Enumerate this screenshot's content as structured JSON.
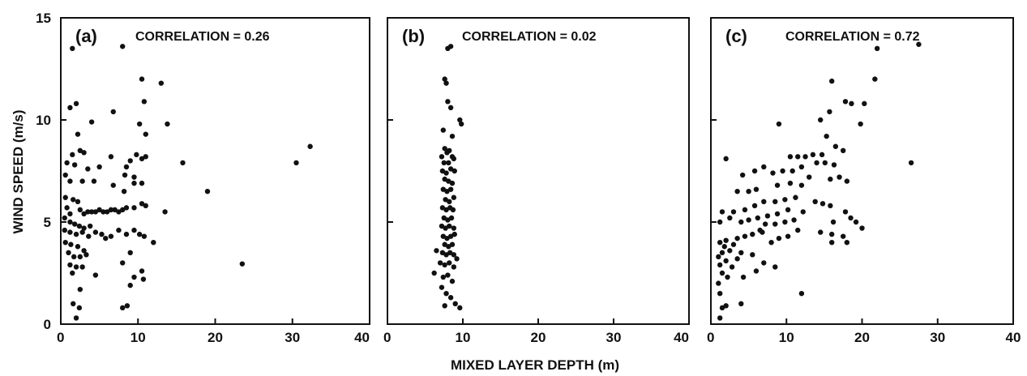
{
  "figure": {
    "ylabel": "WIND SPEED (m/s)",
    "xlabel": "MIXED LAYER DEPTH (m)"
  },
  "chart_data": [
    {
      "type": "scatter",
      "panel": "(a)",
      "annotation": "CORRELATION = 0.26",
      "xlim": [
        0,
        40
      ],
      "ylim": [
        0,
        15
      ],
      "xticks": [
        "0",
        "10",
        "20",
        "30",
        "40"
      ],
      "yticks": [
        "0",
        "5",
        "10",
        "15"
      ],
      "points": [
        [
          1.5,
          13.5
        ],
        [
          8,
          13.6
        ],
        [
          2,
          10.8
        ],
        [
          1.2,
          10.6
        ],
        [
          10.5,
          12
        ],
        [
          13,
          11.8
        ],
        [
          10.8,
          10.9
        ],
        [
          4,
          9.9
        ],
        [
          6.8,
          10.4
        ],
        [
          13.8,
          9.8
        ],
        [
          10.2,
          9.8
        ],
        [
          2.2,
          9.3
        ],
        [
          11,
          9.3
        ],
        [
          2.5,
          8.5
        ],
        [
          1.5,
          8.3
        ],
        [
          3,
          8.4
        ],
        [
          0.8,
          7.9
        ],
        [
          1.8,
          7.8
        ],
        [
          3.5,
          7.6
        ],
        [
          5,
          7.7
        ],
        [
          6.5,
          8.2
        ],
        [
          8.5,
          7.7
        ],
        [
          9,
          8
        ],
        [
          9.8,
          8.3
        ],
        [
          10.5,
          8.1
        ],
        [
          11,
          8.2
        ],
        [
          8.3,
          7.3
        ],
        [
          9.5,
          7.2
        ],
        [
          2.8,
          7
        ],
        [
          0.6,
          7.3
        ],
        [
          1.2,
          7
        ],
        [
          4.3,
          7
        ],
        [
          6.8,
          6.8
        ],
        [
          8.2,
          6.5
        ],
        [
          9.5,
          6.9
        ],
        [
          10.5,
          6.9
        ],
        [
          15.8,
          7.9
        ],
        [
          19,
          6.5
        ],
        [
          30.5,
          7.9
        ],
        [
          32.3,
          8.7
        ],
        [
          0.6,
          6.2
        ],
        [
          1.6,
          6.1
        ],
        [
          2.2,
          6
        ],
        [
          0.8,
          5.7
        ],
        [
          1.2,
          5.4
        ],
        [
          2.5,
          5.6
        ],
        [
          3,
          5.4
        ],
        [
          3.5,
          5.5
        ],
        [
          4,
          5.5
        ],
        [
          4.5,
          5.5
        ],
        [
          5,
          5.6
        ],
        [
          5.5,
          5.5
        ],
        [
          6,
          5.5
        ],
        [
          6.5,
          5.6
        ],
        [
          7,
          5.6
        ],
        [
          7.5,
          5.5
        ],
        [
          8,
          5.6
        ],
        [
          8.5,
          5.7
        ],
        [
          9.5,
          5.7
        ],
        [
          10.5,
          5.9
        ],
        [
          11,
          5.8
        ],
        [
          13.5,
          5.5
        ],
        [
          0.5,
          5.2
        ],
        [
          1.2,
          5
        ],
        [
          1.8,
          4.9
        ],
        [
          2.4,
          4.8
        ],
        [
          3,
          4.7
        ],
        [
          3.8,
          4.8
        ],
        [
          0.5,
          4.6
        ],
        [
          1.2,
          4.5
        ],
        [
          2,
          4.4
        ],
        [
          2.8,
          4.5
        ],
        [
          3.6,
          4.3
        ],
        [
          4.5,
          4.5
        ],
        [
          5.3,
          4.4
        ],
        [
          5.8,
          4.2
        ],
        [
          6.5,
          4.3
        ],
        [
          7.5,
          4.6
        ],
        [
          8.5,
          4.4
        ],
        [
          9.5,
          4.6
        ],
        [
          10.2,
          4.4
        ],
        [
          10.8,
          4.3
        ],
        [
          12,
          4
        ],
        [
          0.6,
          4
        ],
        [
          1.3,
          3.9
        ],
        [
          2.2,
          3.8
        ],
        [
          3,
          3.6
        ],
        [
          1,
          3.5
        ],
        [
          1.7,
          3.3
        ],
        [
          2.5,
          3.3
        ],
        [
          3.3,
          3.4
        ],
        [
          8,
          3
        ],
        [
          9,
          3.5
        ],
        [
          1.2,
          2.9
        ],
        [
          2,
          2.8
        ],
        [
          2.8,
          2.8
        ],
        [
          23.5,
          2.95
        ],
        [
          1.5,
          2.5
        ],
        [
          4.5,
          2.4
        ],
        [
          9.5,
          2.3
        ],
        [
          10.5,
          2.6
        ],
        [
          9,
          1.9
        ],
        [
          2.5,
          1.7
        ],
        [
          10.7,
          2.2
        ],
        [
          1.6,
          1
        ],
        [
          2.4,
          0.8
        ],
        [
          8,
          0.8
        ],
        [
          8.6,
          0.9
        ],
        [
          2,
          0.3
        ]
      ]
    },
    {
      "type": "scatter",
      "panel": "(b)",
      "annotation": "CORRELATION = 0.02",
      "xlim": [
        0,
        40
      ],
      "ylim": [
        0,
        15
      ],
      "xticks": [
        "0",
        "10",
        "20",
        "30",
        "40"
      ],
      "yticks": [
        "0",
        "5",
        "10",
        "15"
      ],
      "points": [
        [
          8,
          13.5
        ],
        [
          8.4,
          13.6
        ],
        [
          7.6,
          12
        ],
        [
          7.8,
          11.8
        ],
        [
          8,
          10.9
        ],
        [
          8.4,
          10.6
        ],
        [
          9.6,
          10
        ],
        [
          9.8,
          9.8
        ],
        [
          7.4,
          9.5
        ],
        [
          8.6,
          9.2
        ],
        [
          7.6,
          8.6
        ],
        [
          7.9,
          8.4
        ],
        [
          8.2,
          8.5
        ],
        [
          8.6,
          8.2
        ],
        [
          7.2,
          8.2
        ],
        [
          7.5,
          7.9
        ],
        [
          8.1,
          7.9
        ],
        [
          8.8,
          8.1
        ],
        [
          7.3,
          7.5
        ],
        [
          7.8,
          7.4
        ],
        [
          8.4,
          7.6
        ],
        [
          8.9,
          7.5
        ],
        [
          7.6,
          7.1
        ],
        [
          8.1,
          7
        ],
        [
          8.6,
          6.9
        ],
        [
          7.4,
          6.6
        ],
        [
          7.9,
          6.5
        ],
        [
          8.4,
          6.6
        ],
        [
          7.7,
          6.1
        ],
        [
          8.2,
          6
        ],
        [
          8.8,
          6.2
        ],
        [
          7.3,
          5.7
        ],
        [
          7.8,
          5.6
        ],
        [
          8.3,
          5.7
        ],
        [
          8.7,
          5.6
        ],
        [
          7.5,
          5.2
        ],
        [
          8,
          5.1
        ],
        [
          8.5,
          5.2
        ],
        [
          7.2,
          4.8
        ],
        [
          7.7,
          4.7
        ],
        [
          8.2,
          4.8
        ],
        [
          8.8,
          4.7
        ],
        [
          7.4,
          4.3
        ],
        [
          7.9,
          4.2
        ],
        [
          8.4,
          4.3
        ],
        [
          8.9,
          4.4
        ],
        [
          7.6,
          3.9
        ],
        [
          8.1,
          3.8
        ],
        [
          8.6,
          3.9
        ],
        [
          6.5,
          3.6
        ],
        [
          7.3,
          3.5
        ],
        [
          7.8,
          3.4
        ],
        [
          8.3,
          3.5
        ],
        [
          8.8,
          3.4
        ],
        [
          9.2,
          3.2
        ],
        [
          7,
          3
        ],
        [
          7.6,
          2.9
        ],
        [
          8.2,
          3
        ],
        [
          8.8,
          2.8
        ],
        [
          6.2,
          2.5
        ],
        [
          7.4,
          2.3
        ],
        [
          8,
          2.4
        ],
        [
          8.6,
          2.1
        ],
        [
          7.2,
          1.8
        ],
        [
          7.8,
          1.5
        ],
        [
          8.4,
          1.3
        ],
        [
          7.6,
          0.9
        ],
        [
          9,
          1
        ],
        [
          9.6,
          0.8
        ]
      ]
    },
    {
      "type": "scatter",
      "panel": "(c)",
      "annotation": "CORRELATION = 0.72",
      "xlim": [
        0,
        40
      ],
      "ylim": [
        0,
        15
      ],
      "xticks": [
        "0",
        "10",
        "20",
        "30",
        "40"
      ],
      "yticks": [
        "0",
        "5",
        "10",
        "15"
      ],
      "points": [
        [
          22,
          13.5
        ],
        [
          27.5,
          13.7
        ],
        [
          16,
          11.9
        ],
        [
          21.7,
          12
        ],
        [
          17.8,
          10.9
        ],
        [
          18.6,
          10.8
        ],
        [
          20.3,
          10.8
        ],
        [
          15.7,
          10.4
        ],
        [
          14.5,
          10
        ],
        [
          19.8,
          9.8
        ],
        [
          9,
          9.8
        ],
        [
          15.3,
          9.2
        ],
        [
          16.5,
          8.7
        ],
        [
          17.5,
          8.5
        ],
        [
          14.7,
          8.3
        ],
        [
          13.5,
          8.3
        ],
        [
          12.5,
          8.2
        ],
        [
          11.5,
          8.2
        ],
        [
          10.5,
          8.2
        ],
        [
          2,
          8.1
        ],
        [
          26.5,
          7.9
        ],
        [
          14,
          7.9
        ],
        [
          15.1,
          7.9
        ],
        [
          16.3,
          7.8
        ],
        [
          12,
          7.7
        ],
        [
          10.8,
          7.5
        ],
        [
          9.5,
          7.5
        ],
        [
          8.2,
          7.4
        ],
        [
          7,
          7.7
        ],
        [
          5.8,
          7.5
        ],
        [
          4.2,
          7.3
        ],
        [
          13,
          7.2
        ],
        [
          15.8,
          7.1
        ],
        [
          17,
          7.2
        ],
        [
          18,
          7
        ],
        [
          12,
          6.8
        ],
        [
          10.5,
          6.9
        ],
        [
          8.8,
          6.8
        ],
        [
          6,
          6.6
        ],
        [
          5,
          6.5
        ],
        [
          3.5,
          6.5
        ],
        [
          11.2,
          6.2
        ],
        [
          9.8,
          6.1
        ],
        [
          8.5,
          6
        ],
        [
          7,
          6
        ],
        [
          5.8,
          5.8
        ],
        [
          4.5,
          5.6
        ],
        [
          3,
          5.5
        ],
        [
          1.5,
          5.5
        ],
        [
          13.8,
          6
        ],
        [
          14.8,
          5.9
        ],
        [
          15.8,
          5.8
        ],
        [
          17.8,
          5.5
        ],
        [
          12.2,
          5.5
        ],
        [
          10.2,
          5.6
        ],
        [
          8.8,
          5.4
        ],
        [
          7.5,
          5.3
        ],
        [
          6.2,
          5.2
        ],
        [
          5,
          5.1
        ],
        [
          4,
          5
        ],
        [
          2.5,
          5.2
        ],
        [
          1.2,
          5
        ],
        [
          11,
          5.1
        ],
        [
          9.8,
          5
        ],
        [
          8.5,
          4.9
        ],
        [
          7.2,
          4.9
        ],
        [
          16.2,
          5
        ],
        [
          18.5,
          5.2
        ],
        [
          19.2,
          5
        ],
        [
          14.5,
          4.5
        ],
        [
          16,
          4.4
        ],
        [
          17.5,
          4.3
        ],
        [
          20,
          4.7
        ],
        [
          6.5,
          4.6
        ],
        [
          5.5,
          4.4
        ],
        [
          4.5,
          4.3
        ],
        [
          3.5,
          4.2
        ],
        [
          2,
          4.1
        ],
        [
          1.2,
          4
        ],
        [
          9,
          4.2
        ],
        [
          10.2,
          4.3
        ],
        [
          11.5,
          4.6
        ],
        [
          8,
          4
        ],
        [
          6.8,
          4.5
        ],
        [
          3,
          3.9
        ],
        [
          1.8,
          3.8
        ],
        [
          2.5,
          3.6
        ],
        [
          1.5,
          3.5
        ],
        [
          4,
          3.5
        ],
        [
          5.5,
          3.4
        ],
        [
          1,
          3.3
        ],
        [
          2,
          3.1
        ],
        [
          3.5,
          3.2
        ],
        [
          16,
          4
        ],
        [
          18,
          4
        ],
        [
          1.2,
          2.9
        ],
        [
          2.8,
          2.8
        ],
        [
          7,
          3
        ],
        [
          6,
          2.6
        ],
        [
          1.5,
          2.5
        ],
        [
          2.2,
          2.3
        ],
        [
          4.3,
          2.3
        ],
        [
          8.5,
          2.8
        ],
        [
          1,
          2
        ],
        [
          1.2,
          1.5
        ],
        [
          12,
          1.5
        ],
        [
          2,
          0.9
        ],
        [
          4,
          1
        ],
        [
          1.5,
          0.8
        ],
        [
          1.2,
          0.3
        ]
      ]
    }
  ]
}
